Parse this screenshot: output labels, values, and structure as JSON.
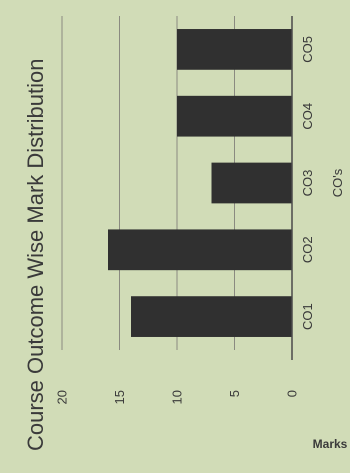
{
  "chart_data": {
    "type": "bar",
    "title": "Course Outcome Wise Mark Distribution",
    "xlabel": "CO's",
    "ylabel": "Marks",
    "categories": [
      "CO1",
      "CO2",
      "CO3",
      "CO4",
      "CO5"
    ],
    "values": [
      14,
      16,
      7,
      10,
      10
    ],
    "ylim": [
      0,
      20
    ],
    "yticks": [
      "0",
      "5",
      "10",
      "15",
      "20"
    ],
    "grid": true,
    "legend": "none",
    "orientation": "rotated-90-ccw",
    "colors": {
      "background": "#d1dcb7",
      "bar": "#303030",
      "grid": "#8a8a80",
      "axis": "#4a4a4a",
      "text": "#3a3a3a"
    }
  }
}
